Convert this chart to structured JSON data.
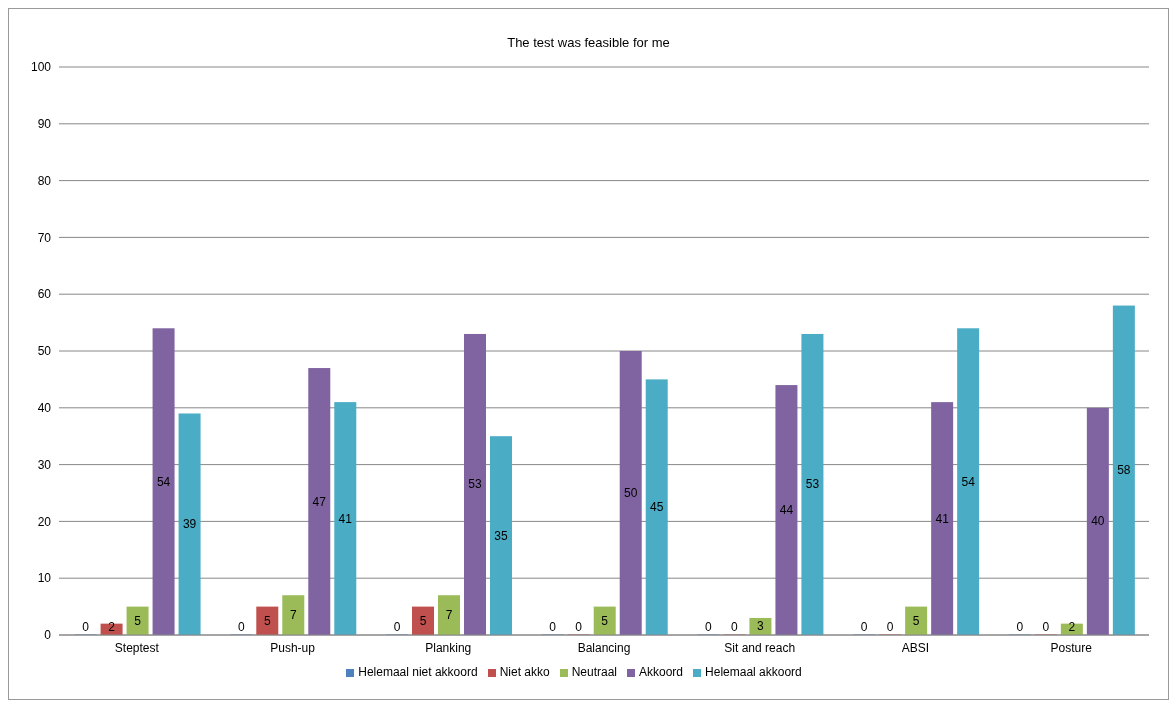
{
  "chart_data": {
    "type": "bar",
    "title": "The test was feasible for me",
    "categories": [
      "Steptest",
      "Push-up",
      "Planking",
      "Balancing",
      "Sit and reach",
      "ABSI",
      "Posture"
    ],
    "series": [
      {
        "name": "Helemaal niet akkoord",
        "color": "#4f81bd",
        "values": [
          0,
          0,
          0,
          0,
          0,
          0,
          0
        ]
      },
      {
        "name": "Niet akko",
        "color": "#c0504d",
        "values": [
          2,
          5,
          5,
          0,
          0,
          0,
          0
        ]
      },
      {
        "name": "Neutraal",
        "color": "#9bbb59",
        "values": [
          5,
          7,
          7,
          5,
          3,
          5,
          2
        ]
      },
      {
        "name": "Akkoord",
        "color": "#8064a2",
        "values": [
          54,
          47,
          53,
          50,
          44,
          41,
          40
        ]
      },
      {
        "name": "Helemaal akkoord",
        "color": "#4bacc6",
        "values": [
          39,
          41,
          35,
          45,
          53,
          54,
          58
        ]
      }
    ],
    "ylim": [
      0,
      100
    ],
    "yticks": [
      0,
      10,
      20,
      30,
      40,
      50,
      60,
      70,
      80,
      90,
      100
    ],
    "grid": "y",
    "legend": "bottom",
    "data_labels": true
  }
}
